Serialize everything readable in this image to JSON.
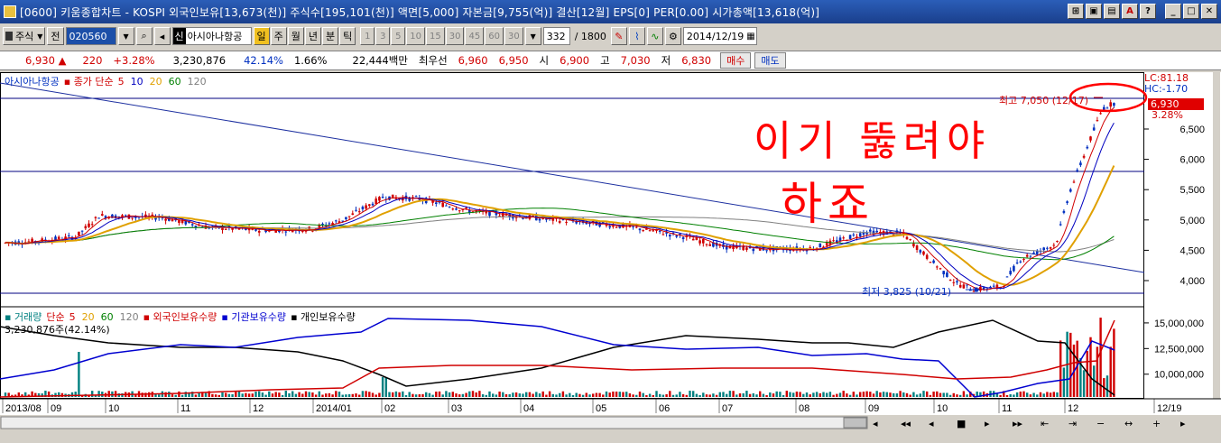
{
  "titlebar": {
    "text": "[0600] 키움종합차트 - KOSPI 외국인보유[13,673(천)] 주식수[195,101(천)] 액면[5,000] 자본금[9,755(억)] 결산[12월] EPS[0] PER[0.00] 시가총액[13,618(억)]"
  },
  "toolbar": {
    "market": "주식",
    "prev": "전",
    "code": "020560",
    "name_badge": "신",
    "name": "아시아나항공",
    "periods": [
      "일",
      "주",
      "월",
      "년",
      "분",
      "틱"
    ],
    "active_period": "일",
    "minutes": [
      "1",
      "3",
      "5",
      "10",
      "15",
      "30",
      "45",
      "60",
      "30"
    ],
    "count": "332",
    "count_total": "/ 1800",
    "date": "2014/12/19"
  },
  "quote": {
    "price": "6,930",
    "change": "220",
    "change_pct": "+3.28%",
    "volume": "3,230,876",
    "vol_ratio": "42.14%",
    "turnover": "1.66%",
    "amount": "22,444백만",
    "best_label": "최우선",
    "best_ask": "6,960",
    "best_bid": "6,950",
    "open_label": "시",
    "open": "6,900",
    "high_label": "고",
    "high": "7,030",
    "low_label": "저",
    "low": "6,830",
    "buy": "매수",
    "sell": "매도"
  },
  "price_legend": {
    "name": "아시아나항공",
    "ma_label": "종가 단순",
    "ma_periods": [
      "5",
      "10",
      "20",
      "60",
      "120"
    ],
    "ma_colors": [
      "#d00000",
      "#0000c0",
      "#e0a000",
      "#008000",
      "#808080"
    ]
  },
  "right_labels": {
    "lc": "LC:81.18",
    "hc": "HC:-1.70",
    "price_box": "6,930",
    "pct": "3.28%"
  },
  "annotations": {
    "high_note": "최고 7,050 (12/17)",
    "low_note": "최저 3,825 (10/21)",
    "handwriting_1": "이기 뚫려야",
    "handwriting_2": "하죠"
  },
  "price_axis": [
    "6,500",
    "6,000",
    "5,500",
    "5,000",
    "4,500",
    "4,000"
  ],
  "volume_legend": {
    "vol_label": "거래량",
    "vol_ma": "단순",
    "vol_periods": [
      "5",
      "20",
      "60",
      "120"
    ],
    "vol_colors": [
      "#d00000",
      "#e0a000",
      "#008000",
      "#808080"
    ],
    "foreign": "외국인보유수량",
    "inst": "기관보유수량",
    "indiv": "개인보유수량",
    "current": "3,230,876주(42.14%)"
  },
  "volume_axis": [
    "15,000,000",
    "12,500,000",
    "10,000,000"
  ],
  "date_axis": [
    "2013/08",
    "09",
    "10",
    "11",
    "12",
    "2014/01",
    "02",
    "03",
    "04",
    "05",
    "06",
    "07",
    "08",
    "09",
    "10",
    "11",
    "12",
    "12/19"
  ],
  "colors": {
    "up": "#d00000",
    "down": "#0030c0",
    "trend": "#1c2fa0",
    "annotation": "#ff0000"
  }
}
